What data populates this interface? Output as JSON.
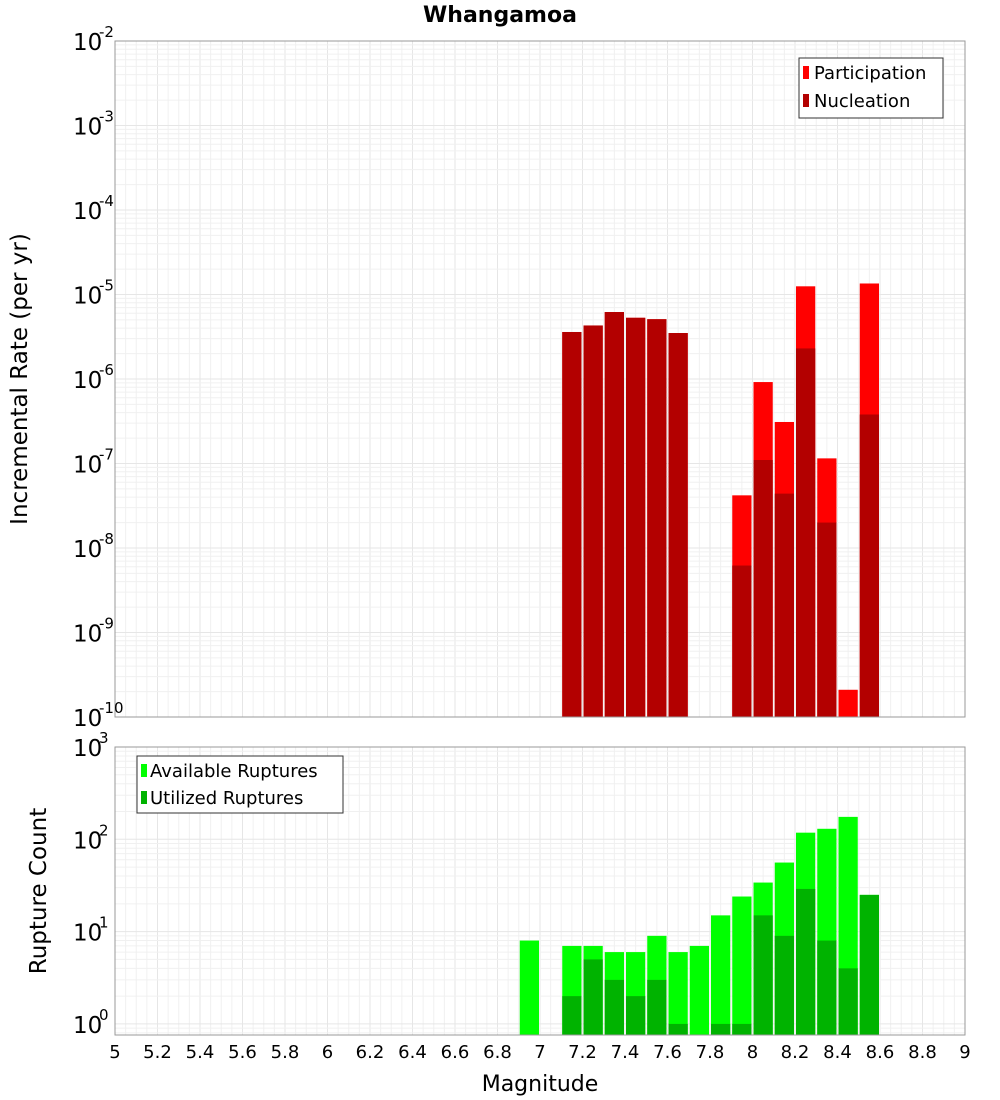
{
  "title": "Whangamoa",
  "chart_data": [
    {
      "type": "bar",
      "ylabel": "Incremental Rate (per yr)",
      "xlabel": "",
      "xlim": [
        5,
        9
      ],
      "ylim_exponent": [
        -10,
        -2
      ],
      "yscale": "log",
      "y_tick_base": "10",
      "y_tick_exponents": [
        "-10",
        "-9",
        "-8",
        "-7",
        "-6",
        "-5",
        "-4",
        "-3",
        "-2"
      ],
      "bar_width": 0.1,
      "legend": {
        "position": "top-right",
        "items": [
          "Participation",
          "Nucleation"
        ]
      },
      "series": [
        {
          "name": "Participation",
          "color": "#ff0000",
          "points": [
            {
              "x": 7.15,
              "y": 3.6e-06
            },
            {
              "x": 7.25,
              "y": 4.3e-06
            },
            {
              "x": 7.35,
              "y": 6.2e-06
            },
            {
              "x": 7.45,
              "y": 5.3e-06
            },
            {
              "x": 7.55,
              "y": 5.1e-06
            },
            {
              "x": 7.65,
              "y": 3.5e-06
            },
            {
              "x": 7.95,
              "y": 4.2e-08
            },
            {
              "x": 8.05,
              "y": 9.2e-07
            },
            {
              "x": 8.15,
              "y": 3.1e-07
            },
            {
              "x": 8.25,
              "y": 1.25e-05
            },
            {
              "x": 8.35,
              "y": 1.15e-07
            },
            {
              "x": 8.45,
              "y": 2.1e-10
            },
            {
              "x": 8.55,
              "y": 1.35e-05
            }
          ]
        },
        {
          "name": "Nucleation",
          "color": "#b30000",
          "points": [
            {
              "x": 7.15,
              "y": 3.6e-06
            },
            {
              "x": 7.25,
              "y": 4.3e-06
            },
            {
              "x": 7.35,
              "y": 6.2e-06
            },
            {
              "x": 7.45,
              "y": 5.3e-06
            },
            {
              "x": 7.55,
              "y": 5.1e-06
            },
            {
              "x": 7.65,
              "y": 3.5e-06
            },
            {
              "x": 7.95,
              "y": 6.2e-09
            },
            {
              "x": 8.05,
              "y": 1.1e-07
            },
            {
              "x": 8.15,
              "y": 4.4e-08
            },
            {
              "x": 8.25,
              "y": 2.3e-06
            },
            {
              "x": 8.35,
              "y": 2e-08
            },
            {
              "x": 8.55,
              "y": 3.8e-07
            }
          ]
        }
      ]
    },
    {
      "type": "bar",
      "ylabel": "Rupture Count",
      "xlabel": "Magnitude",
      "xlim": [
        5,
        9
      ],
      "ylim_exponent": [
        -0.12,
        3
      ],
      "yscale": "log",
      "y_tick_base": "10",
      "y_tick_exponents": [
        "0",
        "1",
        "2",
        "3"
      ],
      "bar_width": 0.1,
      "x_ticks": [
        "5",
        "5.2",
        "5.4",
        "5.6",
        "5.8",
        "6",
        "6.2",
        "6.4",
        "6.6",
        "6.8",
        "7",
        "7.2",
        "7.4",
        "7.6",
        "7.8",
        "8",
        "8.2",
        "8.4",
        "8.6",
        "8.8",
        "9"
      ],
      "legend": {
        "position": "top-left",
        "items": [
          "Available Ruptures",
          "Utilized Ruptures"
        ]
      },
      "series": [
        {
          "name": "Available Ruptures",
          "color": "#00ff00",
          "points": [
            {
              "x": 6.95,
              "y": 8
            },
            {
              "x": 7.15,
              "y": 7
            },
            {
              "x": 7.25,
              "y": 7
            },
            {
              "x": 7.35,
              "y": 6
            },
            {
              "x": 7.45,
              "y": 6
            },
            {
              "x": 7.55,
              "y": 9
            },
            {
              "x": 7.65,
              "y": 6
            },
            {
              "x": 7.75,
              "y": 7
            },
            {
              "x": 7.85,
              "y": 15
            },
            {
              "x": 7.95,
              "y": 24
            },
            {
              "x": 8.05,
              "y": 34
            },
            {
              "x": 8.15,
              "y": 56
            },
            {
              "x": 8.25,
              "y": 118
            },
            {
              "x": 8.35,
              "y": 130
            },
            {
              "x": 8.45,
              "y": 175
            },
            {
              "x": 8.55,
              "y": 25
            }
          ]
        },
        {
          "name": "Utilized Ruptures",
          "color": "#00b300",
          "points": [
            {
              "x": 7.15,
              "y": 2
            },
            {
              "x": 7.25,
              "y": 5
            },
            {
              "x": 7.35,
              "y": 3
            },
            {
              "x": 7.45,
              "y": 2
            },
            {
              "x": 7.55,
              "y": 3
            },
            {
              "x": 7.65,
              "y": 1
            },
            {
              "x": 7.85,
              "y": 1
            },
            {
              "x": 7.95,
              "y": 1
            },
            {
              "x": 8.05,
              "y": 15
            },
            {
              "x": 8.15,
              "y": 9
            },
            {
              "x": 8.25,
              "y": 29
            },
            {
              "x": 8.35,
              "y": 8
            },
            {
              "x": 8.45,
              "y": 4
            },
            {
              "x": 8.55,
              "y": 25
            }
          ]
        }
      ]
    }
  ]
}
